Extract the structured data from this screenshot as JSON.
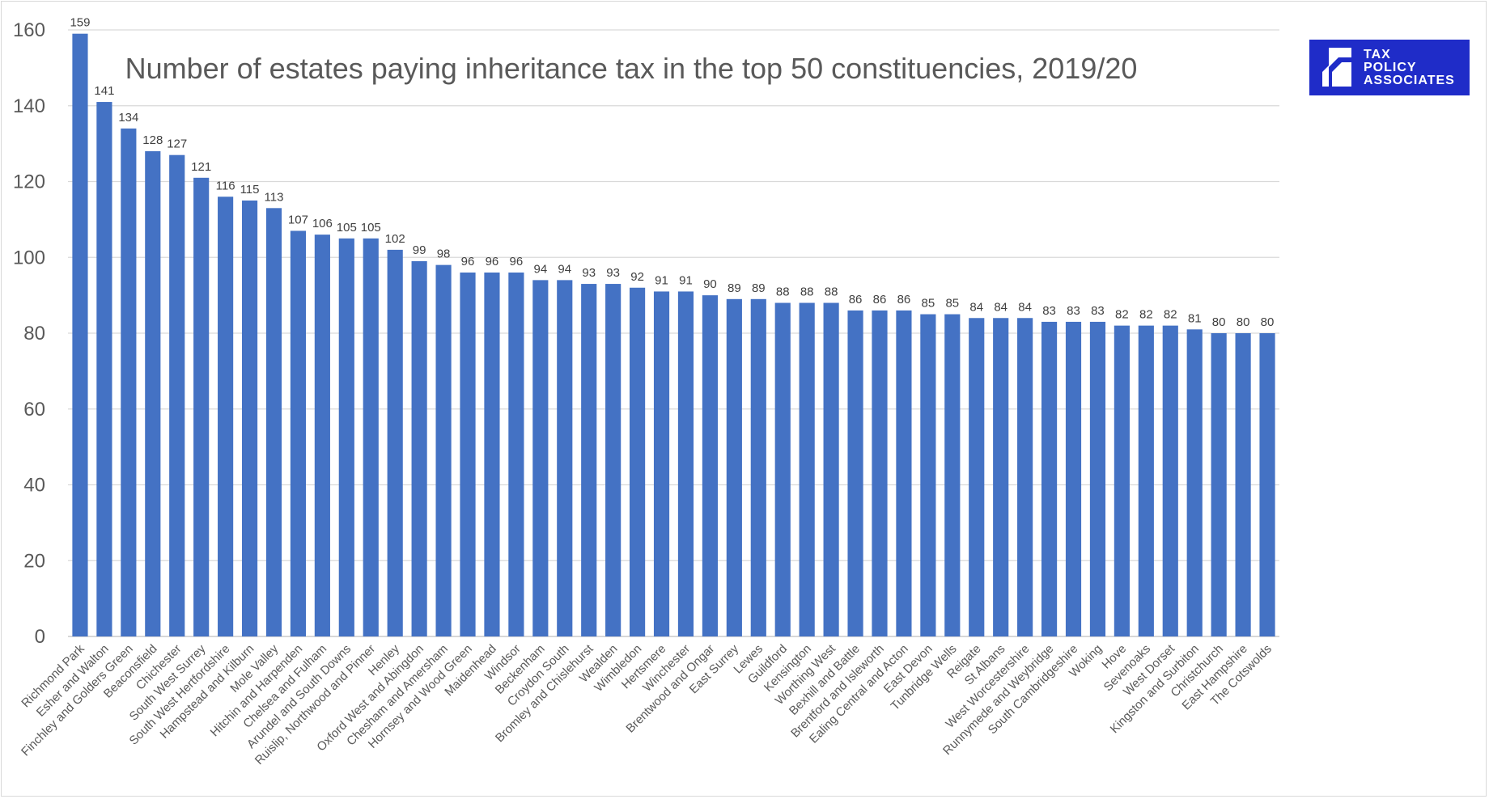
{
  "chart_data": {
    "type": "bar",
    "title": "Number of estates paying inheritance tax in the top 50 constituencies, 2019/20",
    "xlabel": "",
    "ylabel": "",
    "ylim": [
      0,
      160
    ],
    "yticks": [
      0,
      20,
      40,
      60,
      80,
      100,
      120,
      140,
      160
    ],
    "grid": true,
    "bar_color": "#4472c4",
    "categories": [
      "Richmond Park",
      "Esher and Walton",
      "Finchley and Golders Green",
      "Beaconsfield",
      "Chichester",
      "South West Surrey",
      "South West Hertfordshire",
      "Hampstead and Kilburn",
      "Mole Valley",
      "Hitchin and Harpenden",
      "Chelsea and Fulham",
      "Arundel and South Downs",
      "Ruislip, Northwood and Pinner",
      "Henley",
      "Oxford West and Abingdon",
      "Chesham and Amersham",
      "Hornsey and Wood Green",
      "Maidenhead",
      "Windsor",
      "Beckenham",
      "Croydon South",
      "Bromley and Chislehurst",
      "Wealden",
      "Wimbledon",
      "Hertsmere",
      "Winchester",
      "Brentwood and Ongar",
      "East Surrey",
      "Lewes",
      "Guildford",
      "Kensington",
      "Worthing West",
      "Bexhill and Battle",
      "Brentford and Isleworth",
      "Ealing Central and Acton",
      "East Devon",
      "Tunbridge Wells",
      "Reigate",
      "St Albans",
      "West Worcestershire",
      "Runnymede and Weybridge",
      "South Cambridgeshire",
      "Woking",
      "Hove",
      "Sevenoaks",
      "West Dorset",
      "Kingston and Surbiton",
      "Christchurch",
      "East Hampshire",
      "The Cotswolds"
    ],
    "values": [
      159,
      141,
      134,
      128,
      127,
      121,
      116,
      115,
      113,
      107,
      106,
      105,
      105,
      102,
      99,
      98,
      96,
      96,
      96,
      94,
      94,
      93,
      93,
      92,
      91,
      91,
      90,
      89,
      89,
      88,
      88,
      88,
      86,
      86,
      86,
      85,
      85,
      84,
      84,
      84,
      83,
      83,
      83,
      82,
      82,
      82,
      81,
      80,
      80,
      80
    ]
  },
  "logo": {
    "lines": [
      "TAX",
      "POLICY",
      "ASSOCIATES"
    ],
    "bg_color": "#1f2cc8"
  }
}
